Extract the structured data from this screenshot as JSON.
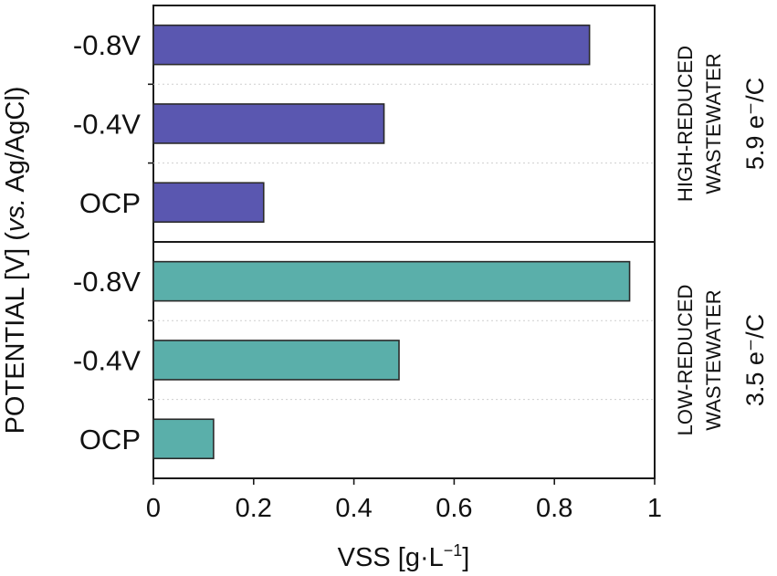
{
  "chart_data": {
    "type": "bar",
    "orientation": "horizontal",
    "xlabel": "VSS [g·L⁻¹]",
    "ylabel": "POTENTIAL [V] (vs. Ag/AgCl)",
    "xlim": [
      0,
      1
    ],
    "xticks": [
      "0",
      "0.2",
      "0.4",
      "0.6",
      "0.8",
      "1"
    ],
    "panels": [
      {
        "label_line1": "HIGH-REDUCED",
        "label_line2": "WASTEWATER",
        "ratio": "5.9 e⁻/C",
        "color": "#5a57b0",
        "categories": [
          "-0.8V",
          "-0.4V",
          "OCP"
        ],
        "values": [
          0.87,
          0.46,
          0.22
        ]
      },
      {
        "label_line1": "LOW-REDUCED",
        "label_line2": "WASTEWATER",
        "ratio": "3.5 e⁻/C",
        "color": "#5aafaa",
        "categories": [
          "-0.8V",
          "-0.4V",
          "OCP"
        ],
        "values": [
          0.95,
          0.49,
          0.12
        ]
      }
    ]
  }
}
